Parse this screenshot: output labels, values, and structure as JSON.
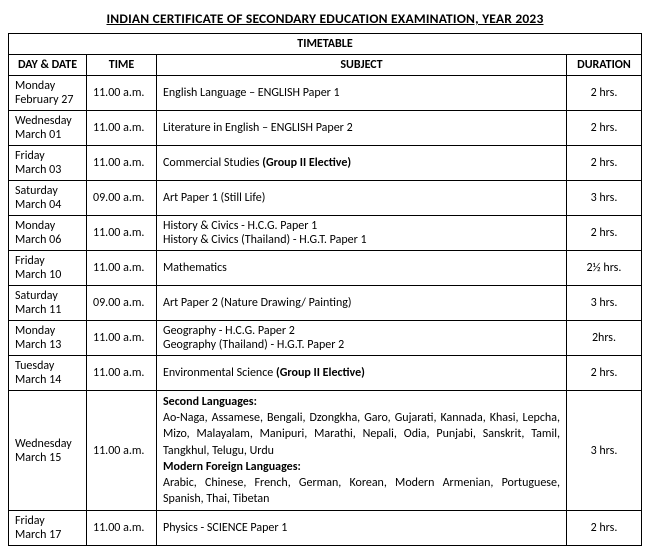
{
  "title": "INDIAN CERTIFICATE OF SECONDARY EDUCATION EXAMINATION, YEAR 2023",
  "subtitle": "TIMETABLE",
  "headers": {
    "day": "DAY & DATE",
    "time": "TIME",
    "subject": "SUBJECT",
    "duration": "DURATION"
  },
  "rows": [
    {
      "day1": "Monday",
      "day2": "February 27",
      "time": "11.00 a.m.",
      "subj_plain": "English Language – ENGLISH Paper 1",
      "dur": "2 hrs."
    },
    {
      "day1": "Wednesday",
      "day2": "March 01",
      "time": "11.00 a.m.",
      "subj_plain": "Literature in English – ENGLISH Paper 2",
      "dur": "2 hrs."
    },
    {
      "day1": "Friday",
      "day2": "March 03",
      "time": "11.00 a.m.",
      "subj_pre": "Commercial Studies ",
      "subj_bold": "(Group II Elective)",
      "dur": "2 hrs."
    },
    {
      "day1": "Saturday",
      "day2": "March 04",
      "time": "09.00 a.m.",
      "subj_plain": "Art Paper 1 (Still Life)",
      "dur": "3 hrs."
    },
    {
      "day1": "Monday",
      "day2": "March 06",
      "time": "11.00 a.m.",
      "subj_l1": "History & Civics - H.C.G. Paper 1",
      "subj_l2": "History & Civics (Thailand) - H.G.T. Paper 1",
      "dur": "2 hrs."
    },
    {
      "day1": "Friday",
      "day2": "March 10",
      "time": "11.00 a.m.",
      "subj_plain": "Mathematics",
      "dur": "2½ hrs."
    },
    {
      "day1": "Saturday",
      "day2": "March 11",
      "time": "09.00 a.m.",
      "subj_plain": "Art Paper 2 (Nature Drawing/ Painting)",
      "dur": "3 hrs."
    },
    {
      "day1": "Monday",
      "day2": "March 13",
      "time": "11.00 a.m.",
      "subj_l1": "Geography - H.C.G. Paper 2",
      "subj_l2": "Geography (Thailand) - H.G.T. Paper 2",
      "dur": "2hrs."
    },
    {
      "day1": "Tuesday",
      "day2": "March 14",
      "time": "11.00 a.m.",
      "subj_pre": "Environmental Science ",
      "subj_bold": "(Group II Elective)",
      "dur": "2 hrs."
    },
    {
      "day1": "Wednesday",
      "day2": "March 15",
      "time": "11.00 a.m.",
      "lang_h1": "Second Languages:",
      "lang_p1": "Ao-Naga, Assamese, Bengali, Dzongkha, Garo, Gujarati, Kannada, Khasi, Lepcha, Mizo, Malayalam, Manipuri, Marathi, Nepali, Odia, Punjabi, Sanskrit, Tamil, Tangkhul, Telugu, Urdu",
      "lang_h2": "Modern Foreign Languages:",
      "lang_p2": "Arabic, Chinese, French, German, Korean, Modern Armenian, Portuguese, Spanish, Thai, Tibetan",
      "dur": "3 hrs."
    },
    {
      "day1": "Friday",
      "day2": "March 17",
      "time": "11.00 a.m.",
      "subj_plain": "Physics - SCIENCE Paper 1",
      "dur": "2 hrs."
    }
  ]
}
